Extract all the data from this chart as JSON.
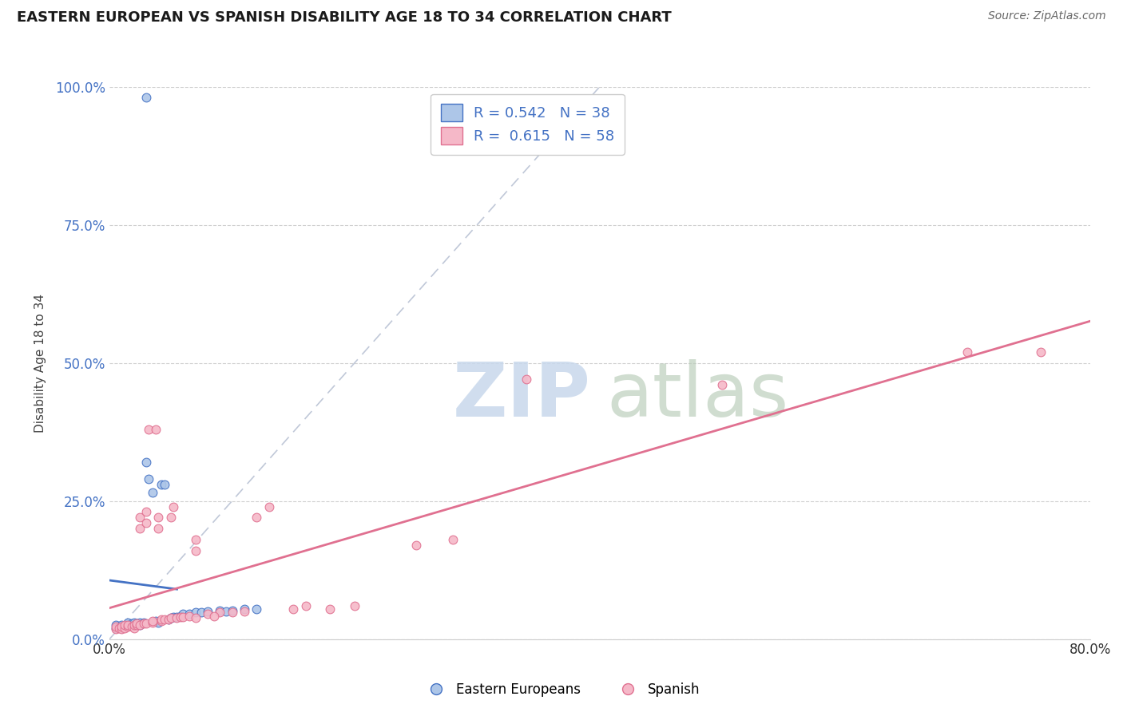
{
  "title": "EASTERN EUROPEAN VS SPANISH DISABILITY AGE 18 TO 34 CORRELATION CHART",
  "source": "Source: ZipAtlas.com",
  "xlabel": "",
  "ylabel": "Disability Age 18 to 34",
  "xlim": [
    0.0,
    0.8
  ],
  "ylim": [
    0.0,
    1.0
  ],
  "xtick_labels": [
    "0.0%",
    "80.0%"
  ],
  "ytick_labels": [
    "0.0%",
    "25.0%",
    "50.0%",
    "75.0%",
    "100.0%"
  ],
  "ytick_positions": [
    0.0,
    0.25,
    0.5,
    0.75,
    1.0
  ],
  "legend_r1": "R = 0.542   N = 38",
  "legend_r2": "R =  0.615   N = 58",
  "color_eastern": "#adc6e8",
  "color_spanish": "#f5b8c8",
  "line_color_eastern": "#4472c4",
  "line_color_spanish": "#e07090",
  "diagonal_color": "#c0c8d8",
  "legend_color_blue": "#4472c4",
  "eastern_points": [
    [
      0.005,
      0.02
    ],
    [
      0.005,
      0.025
    ],
    [
      0.008,
      0.022
    ],
    [
      0.01,
      0.02
    ],
    [
      0.01,
      0.025
    ],
    [
      0.012,
      0.022
    ],
    [
      0.015,
      0.025
    ],
    [
      0.015,
      0.03
    ],
    [
      0.018,
      0.028
    ],
    [
      0.02,
      0.025
    ],
    [
      0.02,
      0.03
    ],
    [
      0.022,
      0.028
    ],
    [
      0.025,
      0.025
    ],
    [
      0.025,
      0.03
    ],
    [
      0.028,
      0.03
    ],
    [
      0.03,
      0.32
    ],
    [
      0.032,
      0.29
    ],
    [
      0.035,
      0.265
    ],
    [
      0.038,
      0.032
    ],
    [
      0.04,
      0.03
    ],
    [
      0.042,
      0.28
    ],
    [
      0.045,
      0.28
    ],
    [
      0.048,
      0.035
    ],
    [
      0.05,
      0.038
    ],
    [
      0.052,
      0.04
    ],
    [
      0.055,
      0.04
    ],
    [
      0.058,
      0.042
    ],
    [
      0.06,
      0.045
    ],
    [
      0.065,
      0.045
    ],
    [
      0.07,
      0.048
    ],
    [
      0.075,
      0.048
    ],
    [
      0.08,
      0.05
    ],
    [
      0.09,
      0.052
    ],
    [
      0.095,
      0.05
    ],
    [
      0.1,
      0.052
    ],
    [
      0.11,
      0.055
    ],
    [
      0.12,
      0.055
    ],
    [
      0.03,
      0.98
    ]
  ],
  "spanish_points": [
    [
      0.005,
      0.018
    ],
    [
      0.005,
      0.022
    ],
    [
      0.008,
      0.02
    ],
    [
      0.01,
      0.018
    ],
    [
      0.01,
      0.022
    ],
    [
      0.012,
      0.02
    ],
    [
      0.012,
      0.025
    ],
    [
      0.015,
      0.022
    ],
    [
      0.015,
      0.025
    ],
    [
      0.018,
      0.022
    ],
    [
      0.02,
      0.02
    ],
    [
      0.02,
      0.025
    ],
    [
      0.022,
      0.025
    ],
    [
      0.022,
      0.028
    ],
    [
      0.025,
      0.025
    ],
    [
      0.025,
      0.2
    ],
    [
      0.025,
      0.22
    ],
    [
      0.028,
      0.028
    ],
    [
      0.03,
      0.028
    ],
    [
      0.03,
      0.21
    ],
    [
      0.03,
      0.23
    ],
    [
      0.032,
      0.38
    ],
    [
      0.035,
      0.03
    ],
    [
      0.035,
      0.032
    ],
    [
      0.038,
      0.38
    ],
    [
      0.04,
      0.2
    ],
    [
      0.04,
      0.22
    ],
    [
      0.042,
      0.032
    ],
    [
      0.042,
      0.035
    ],
    [
      0.045,
      0.035
    ],
    [
      0.048,
      0.035
    ],
    [
      0.05,
      0.038
    ],
    [
      0.05,
      0.22
    ],
    [
      0.052,
      0.24
    ],
    [
      0.055,
      0.038
    ],
    [
      0.058,
      0.04
    ],
    [
      0.06,
      0.04
    ],
    [
      0.065,
      0.042
    ],
    [
      0.07,
      0.16
    ],
    [
      0.07,
      0.18
    ],
    [
      0.08,
      0.045
    ],
    [
      0.09,
      0.048
    ],
    [
      0.1,
      0.048
    ],
    [
      0.11,
      0.05
    ],
    [
      0.12,
      0.22
    ],
    [
      0.13,
      0.24
    ],
    [
      0.15,
      0.055
    ],
    [
      0.16,
      0.06
    ],
    [
      0.18,
      0.055
    ],
    [
      0.2,
      0.06
    ],
    [
      0.25,
      0.17
    ],
    [
      0.28,
      0.18
    ],
    [
      0.34,
      0.47
    ],
    [
      0.5,
      0.46
    ],
    [
      0.7,
      0.52
    ],
    [
      0.76,
      0.52
    ],
    [
      0.07,
      0.038
    ],
    [
      0.085,
      0.042
    ]
  ]
}
